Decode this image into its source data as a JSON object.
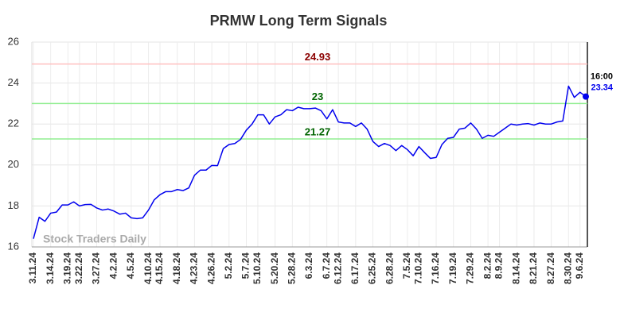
{
  "chart_data": {
    "type": "line",
    "title": "PRMW Long Term Signals",
    "watermark": "Stock Traders Daily",
    "color": "#0000ee",
    "grid": true,
    "ylim": [
      16,
      26
    ],
    "yticks": [
      16,
      18,
      20,
      22,
      24,
      26
    ],
    "categories": [
      "3.11.24",
      null,
      null,
      "3.14.24",
      null,
      null,
      "3.19.24",
      null,
      "3.22.24",
      null,
      null,
      "3.27.24",
      null,
      null,
      "4.2.24",
      null,
      null,
      "4.5.24",
      null,
      null,
      "4.10.24",
      null,
      "4.15.24",
      null,
      null,
      "4.18.24",
      null,
      null,
      "4.23.24",
      null,
      null,
      "4.26.24",
      null,
      null,
      "5.2.24",
      null,
      null,
      "5.7.24",
      null,
      "5.10.24",
      null,
      null,
      "5.20.24",
      null,
      null,
      "5.28.24",
      null,
      null,
      "6.3.24",
      null,
      null,
      "6.7.24",
      null,
      "6.12.24",
      null,
      null,
      "6.17.24",
      null,
      null,
      "6.25.24",
      null,
      null,
      "6.28.24",
      null,
      null,
      "7.5.24",
      null,
      "7.10.24",
      null,
      null,
      "7.16.24",
      null,
      null,
      "7.19.24",
      null,
      null,
      "7.29.24",
      null,
      null,
      "8.2.24",
      null,
      "8.9.24",
      null,
      null,
      "8.14.24",
      null,
      null,
      "8.21.24",
      null,
      null,
      "8.27.24",
      null,
      null,
      "8.30.24",
      null,
      "9.6.24",
      null
    ],
    "values": [
      16.4,
      17.45,
      17.25,
      17.65,
      17.7,
      18.05,
      18.05,
      18.2,
      18.0,
      18.07,
      18.08,
      17.9,
      17.8,
      17.85,
      17.75,
      17.6,
      17.65,
      17.42,
      17.38,
      17.42,
      17.8,
      18.3,
      18.55,
      18.7,
      18.7,
      18.8,
      18.75,
      18.88,
      19.5,
      19.75,
      19.75,
      19.98,
      19.97,
      20.8,
      21.0,
      21.05,
      21.25,
      21.7,
      22.0,
      22.45,
      22.45,
      22.0,
      22.35,
      22.45,
      22.7,
      22.65,
      22.82,
      22.75,
      22.75,
      22.78,
      22.65,
      22.25,
      22.7,
      22.1,
      22.05,
      22.05,
      21.88,
      22.05,
      21.75,
      21.15,
      20.9,
      21.05,
      20.95,
      20.7,
      20.95,
      20.75,
      20.45,
      20.9,
      20.6,
      20.32,
      20.37,
      21.0,
      21.3,
      21.35,
      21.75,
      21.8,
      22.05,
      21.75,
      21.3,
      21.45,
      21.4,
      21.6,
      21.8,
      22.0,
      21.95,
      22.0,
      22.02,
      21.95,
      22.05,
      22.0,
      22.0,
      22.1,
      22.15,
      23.85,
      23.3,
      23.55,
      23.34
    ],
    "last_time": "16:00",
    "hlines": [
      {
        "value": 24.93,
        "color": "#ffc0c0",
        "label_color": "#8b0000"
      },
      {
        "value": 23,
        "color": "#90ee90",
        "label_color": "#006400"
      },
      {
        "value": 21.27,
        "color": "#90ee90",
        "label_color": "#006400"
      }
    ]
  }
}
